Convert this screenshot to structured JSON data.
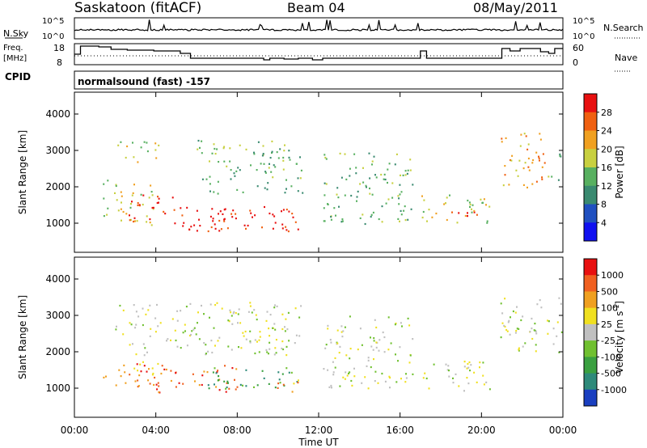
{
  "header": {
    "station": "Saskatoon (fitACF)",
    "beam": "Beam 04",
    "date": "08/May/2011"
  },
  "noise_panel": {
    "left_label": "N.Sky",
    "right_label": "N.Search",
    "left_ticks": [
      "10^5",
      "10^0"
    ],
    "right_ticks": [
      "10^5",
      "10^0"
    ]
  },
  "freq_panel": {
    "left_label_1": "Freq.",
    "left_label_2": "[MHz]",
    "right_label": "Nave",
    "left_ticks": [
      "18",
      "8"
    ],
    "right_ticks": [
      "60",
      "0"
    ]
  },
  "cpid": {
    "label": "CPID",
    "value": "normalsound (fast) -157"
  },
  "chart_data": [
    {
      "type": "heatmap",
      "name": "power",
      "ylabel": "Slant Range [km]",
      "yticks": [
        "1000",
        "2000",
        "3000",
        "4000"
      ],
      "ylim": [
        200,
        4600
      ],
      "xlim": [
        "00:00",
        "24:00"
      ],
      "colorbar": {
        "title": "Power [dB]",
        "ticks": [
          "4",
          "8",
          "12",
          "16",
          "20",
          "24",
          "28"
        ],
        "colors": [
          "#1010f0",
          "#2050c0",
          "#3a8a70",
          "#58b060",
          "#c8d040",
          "#f0a020",
          "#f06010",
          "#e81010"
        ]
      },
      "regions": [
        {
          "t0": 1.4,
          "t1": 4.0,
          "r0": 900,
          "r1": 2200,
          "level": 4
        },
        {
          "t0": 2.0,
          "t1": 4.2,
          "r0": 2700,
          "r1": 3300,
          "level": 4
        },
        {
          "t0": 2.6,
          "t1": 5.0,
          "r0": 1000,
          "r1": 1800,
          "level": 7
        },
        {
          "t0": 4.5,
          "t1": 11.0,
          "r0": 800,
          "r1": 1500,
          "level": 7
        },
        {
          "t0": 5.5,
          "t1": 8.0,
          "r0": 800,
          "r1": 1300,
          "level": 7
        },
        {
          "t0": 6.0,
          "t1": 11.2,
          "r0": 1800,
          "r1": 3300,
          "level": 3
        },
        {
          "t0": 12.2,
          "t1": 16.6,
          "r0": 1000,
          "r1": 3000,
          "level": 3
        },
        {
          "t0": 17.0,
          "t1": 20.4,
          "r0": 1000,
          "r1": 1800,
          "level": 4
        },
        {
          "t0": 18.2,
          "t1": 20.2,
          "r0": 1100,
          "r1": 1400,
          "level": 6
        },
        {
          "t0": 20.8,
          "t1": 23.3,
          "r0": 2000,
          "r1": 3500,
          "level": 5
        },
        {
          "t0": 23.4,
          "t1": 24.0,
          "r0": 2200,
          "r1": 3000,
          "level": 3
        }
      ]
    },
    {
      "type": "heatmap",
      "name": "velocity",
      "ylabel": "Slant Range [km]",
      "yticks": [
        "1000",
        "2000",
        "3000",
        "4000"
      ],
      "ylim": [
        200,
        4600
      ],
      "xlim": [
        "00:00",
        "24:00"
      ],
      "colorbar": {
        "title": "Velocity [m s",
        "title_sup": "-1",
        "title_end": "]",
        "ticks": [
          "1000",
          "500",
          "100",
          "25",
          "-25",
          "-100",
          "-500",
          "-1000"
        ],
        "colors": [
          "#1a3fc0",
          "#2e8a7a",
          "#3aa040",
          "#70c030",
          "#c0c0c0",
          "#f0e020",
          "#f0a020",
          "#f06020",
          "#e81010"
        ]
      },
      "regions": [
        {
          "t0": 1.4,
          "t1": 4.2,
          "r0": 1000,
          "r1": 1800,
          "level": 6
        },
        {
          "t0": 3.0,
          "t1": 8.0,
          "r0": 900,
          "r1": 1700,
          "level": 7
        },
        {
          "t0": 6.0,
          "t1": 11.0,
          "r0": 1000,
          "r1": 1600,
          "level": 2
        },
        {
          "t0": 9.5,
          "t1": 11.0,
          "r0": 900,
          "r1": 1300,
          "level": 6
        },
        {
          "t0": 2.0,
          "t1": 11.2,
          "r0": 1900,
          "r1": 3400,
          "level": 4
        },
        {
          "t0": 12.2,
          "t1": 16.6,
          "r0": 1000,
          "r1": 3000,
          "level": 4
        },
        {
          "t0": 17.0,
          "t1": 20.4,
          "r0": 900,
          "r1": 1800,
          "level": 4
        },
        {
          "t0": 20.8,
          "t1": 24.0,
          "r0": 2000,
          "r1": 3500,
          "level": 4
        }
      ]
    }
  ],
  "xaxis": {
    "ticks": [
      "00:00",
      "04:00",
      "08:00",
      "12:00",
      "16:00",
      "20:00",
      "00:00"
    ],
    "label": "Time UT"
  }
}
